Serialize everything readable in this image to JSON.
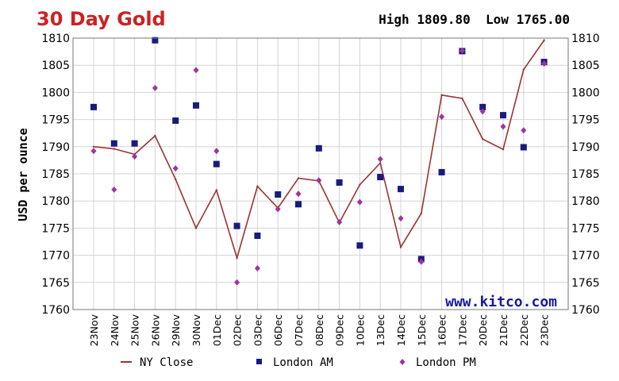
{
  "chart_data": {
    "type": "line",
    "title": "30 Day Gold",
    "high_label": "High",
    "high_value": "1809.80",
    "low_label": "Low",
    "low_value": "1765.00",
    "ylabel": "USD per ounce",
    "watermark": "www.kitco.com",
    "ylim": [
      1760,
      1810
    ],
    "yticks": [
      "1760",
      "1765",
      "1770",
      "1775",
      "1780",
      "1785",
      "1790",
      "1795",
      "1800",
      "1805",
      "1810"
    ],
    "categories": [
      "23Nov",
      "24Nov",
      "25Nov",
      "26Nov",
      "29Nov",
      "30Nov",
      "01Dec",
      "02Dec",
      "03Dec",
      "06Dec",
      "07Dec",
      "08Dec",
      "09Dec",
      "10Dec",
      "13Dec",
      "14Dec",
      "15Dec",
      "16Dec",
      "17Dec",
      "20Dec",
      "21Dec",
      "22Dec",
      "23Dec"
    ],
    "grid": true,
    "legend_position": "bottom",
    "series": [
      {
        "name": "NY Close",
        "kind": "line",
        "color": "#993333",
        "values": [
          1790.0,
          1789.6,
          1788.6,
          1792.0,
          1784.0,
          1775.0,
          1782.0,
          1769.5,
          1782.7,
          1778.7,
          1784.2,
          1783.7,
          1776.0,
          1783.0,
          1787.0,
          1771.5,
          1777.7,
          1799.5,
          1798.9,
          1791.4,
          1789.5,
          1804.2,
          1809.6
        ]
      },
      {
        "name": "London AM",
        "kind": "square",
        "color": "#1a1a80",
        "values": [
          1797.3,
          1790.6,
          1790.6,
          1809.6,
          1794.8,
          1797.6,
          1786.8,
          1775.4,
          1773.6,
          1781.2,
          1779.4,
          1789.7,
          1783.4,
          1771.8,
          1784.4,
          1782.2,
          1769.3,
          1785.3,
          1807.6,
          1797.3,
          1795.8,
          1789.9,
          1805.6
        ]
      },
      {
        "name": "London PM",
        "kind": "diamond",
        "color": "#a033a0",
        "values": [
          1789.2,
          1782.1,
          1788.2,
          1800.8,
          1786.0,
          1804.1,
          1789.2,
          1765.0,
          1767.6,
          1778.5,
          1781.3,
          1783.8,
          1776.1,
          1779.8,
          1787.7,
          1776.8,
          1768.8,
          1795.5,
          1807.7,
          1796.5,
          1793.7,
          1793.0,
          1805.3
        ]
      }
    ]
  }
}
